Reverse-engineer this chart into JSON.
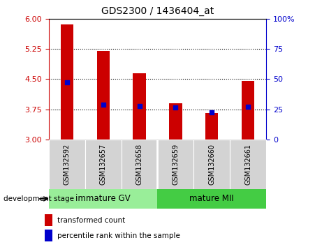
{
  "title": "GDS2300 / 1436404_at",
  "samples": [
    "GSM132592",
    "GSM132657",
    "GSM132658",
    "GSM132659",
    "GSM132660",
    "GSM132661"
  ],
  "bar_bottom": 3.0,
  "bar_tops": [
    5.85,
    5.2,
    4.65,
    3.9,
    3.65,
    4.45
  ],
  "percentile_values": [
    4.42,
    3.87,
    3.83,
    3.79,
    3.68,
    3.82
  ],
  "bar_color": "#cc0000",
  "percentile_color": "#0000cc",
  "ylim": [
    3.0,
    6.0
  ],
  "yticks_left": [
    3.0,
    3.75,
    4.5,
    5.25,
    6.0
  ],
  "yticks_right_labels": [
    "0",
    "25",
    "50",
    "75",
    "100%"
  ],
  "yticks_right_vals": [
    3.0,
    3.75,
    4.5,
    5.25,
    6.0
  ],
  "hline_vals": [
    3.75,
    4.5,
    5.25
  ],
  "group0_label": "immature GV",
  "group1_label": "mature MII",
  "group0_color": "#99ee99",
  "group1_color": "#44cc44",
  "group_label": "development stage",
  "legend_bar_label": "transformed count",
  "legend_pct_label": "percentile rank within the sample",
  "axis_color_left": "#cc0000",
  "axis_color_right": "#0000cc",
  "label_bg_color": "#d3d3d3",
  "bar_width": 0.35,
  "figwidth": 4.51,
  "figheight": 3.54
}
